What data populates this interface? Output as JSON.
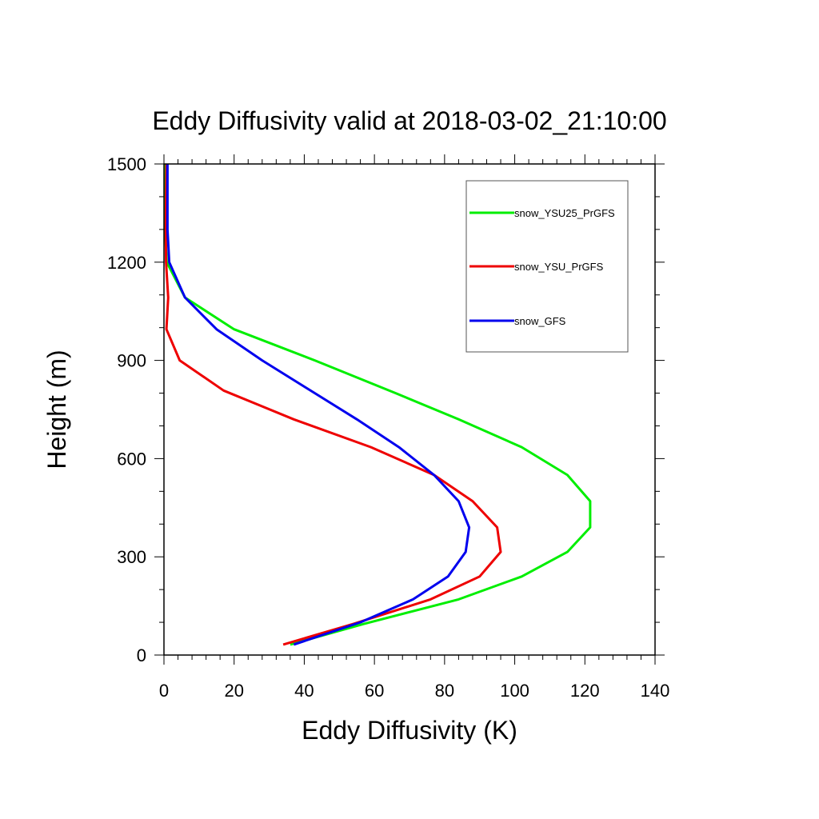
{
  "chart_data": {
    "type": "line",
    "title": "Eddy Diffusivity valid at 2018-03-02_21:10:00",
    "xlabel": "Eddy Diffusivity (K)",
    "ylabel": "Height (m)",
    "xlim": [
      0,
      140
    ],
    "ylim": [
      0,
      1500
    ],
    "xticks": [
      0,
      20,
      40,
      60,
      80,
      100,
      120,
      140
    ],
    "yticks": [
      0,
      300,
      600,
      900,
      1200,
      1500
    ],
    "xtick_labels": [
      "0",
      "20",
      "40",
      "60",
      "80",
      "100",
      "120",
      "140"
    ],
    "ytick_labels": [
      "0",
      "300",
      "600",
      "900",
      "1200",
      "1500"
    ],
    "grid": false,
    "legend_position": "top-right",
    "series": [
      {
        "name": "snow_YSU25_PrGFS",
        "color": "#00ee00",
        "points": [
          [
            36,
            32
          ],
          [
            57,
            95
          ],
          [
            84,
            170
          ],
          [
            102,
            240
          ],
          [
            115,
            315
          ],
          [
            121.5,
            390
          ],
          [
            121.5,
            470
          ],
          [
            115,
            550
          ],
          [
            102,
            635
          ],
          [
            84,
            720
          ],
          [
            66,
            800
          ],
          [
            43,
            900
          ],
          [
            20,
            995
          ],
          [
            6,
            1092
          ],
          [
            0.8,
            1200
          ],
          [
            0.3,
            1300
          ],
          [
            0.4,
            1400
          ],
          [
            0.5,
            1500
          ]
        ]
      },
      {
        "name": "snow_YSU_PrGFS",
        "color": "#ee0000",
        "points": [
          [
            34,
            32
          ],
          [
            54,
            95
          ],
          [
            76,
            170
          ],
          [
            90,
            240
          ],
          [
            96,
            315
          ],
          [
            95,
            390
          ],
          [
            88,
            470
          ],
          [
            77,
            550
          ],
          [
            59,
            635
          ],
          [
            37,
            720
          ],
          [
            17,
            808
          ],
          [
            4.5,
            900
          ],
          [
            0.7,
            995
          ],
          [
            1.2,
            1092
          ],
          [
            0.6,
            1200
          ],
          [
            0.5,
            1300
          ],
          [
            0.6,
            1400
          ],
          [
            0.7,
            1500
          ]
        ]
      },
      {
        "name": "snow_GFS",
        "color": "#0000ee",
        "points": [
          [
            37,
            32
          ],
          [
            56,
            100
          ],
          [
            71,
            170
          ],
          [
            81,
            240
          ],
          [
            86,
            315
          ],
          [
            87,
            390
          ],
          [
            84,
            470
          ],
          [
            77,
            550
          ],
          [
            67,
            635
          ],
          [
            55,
            720
          ],
          [
            28,
            900
          ],
          [
            15,
            995
          ],
          [
            6,
            1092
          ],
          [
            1.5,
            1200
          ],
          [
            1,
            1300
          ],
          [
            1,
            1400
          ],
          [
            1,
            1500
          ]
        ]
      }
    ]
  }
}
